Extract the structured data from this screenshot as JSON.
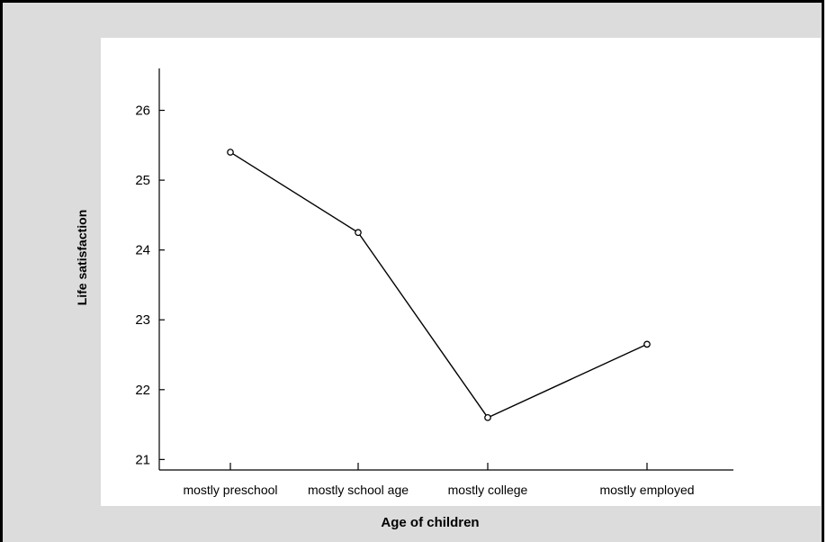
{
  "chart_data": {
    "type": "line",
    "title": "",
    "xlabel": "Age of children",
    "ylabel": "Life satisfaction",
    "categories": [
      "mostly preschool",
      "mostly school age",
      "mostly college",
      "mostly employed"
    ],
    "series": [
      {
        "values": [
          25.4,
          24.25,
          21.6,
          22.65
        ]
      }
    ],
    "ylim": [
      20.85,
      26.6
    ],
    "yticks": [
      21,
      22,
      23,
      24,
      25,
      26
    ],
    "grid": false,
    "legend": "none",
    "colors": {
      "line": "#000000",
      "frame": "#000000",
      "background": "#dcdcdc",
      "panel": "#ffffff"
    }
  }
}
